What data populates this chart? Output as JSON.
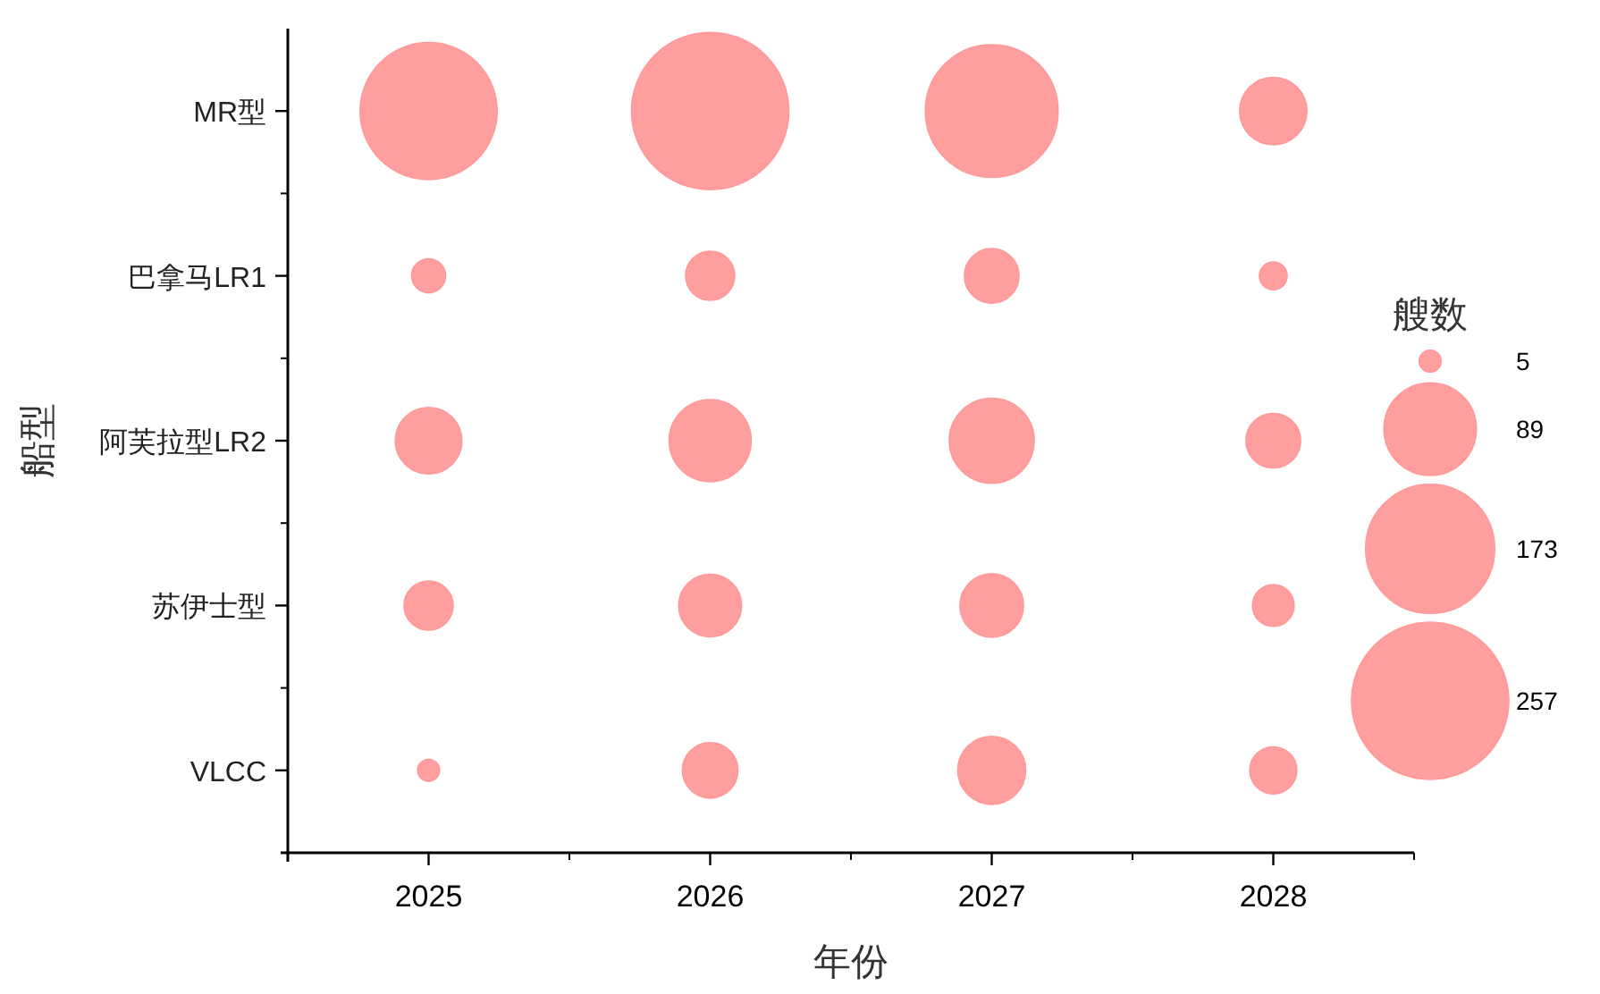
{
  "chart_data": {
    "type": "bubble",
    "orientation": "horizontal",
    "xlabel": "年份",
    "ylabel": "船型",
    "legend_title": "艘数",
    "xlim": [
      2024.5,
      2028.5
    ],
    "xticks": [
      2025,
      2026,
      2027,
      2028
    ],
    "categories": [
      "MR型",
      "巴拿马LR1",
      "阿芙拉型LR2",
      "苏伊士型",
      "VLCC"
    ],
    "size_legend": [
      5,
      89,
      173,
      257
    ],
    "series": [
      {
        "color": "#ff9999",
        "values": [
          2025,
          2025,
          2025,
          2025,
          2025
        ],
        "sizes": [
          195,
          12,
          46,
          25,
          5
        ]
      },
      {
        "color": "#ff9999",
        "values": [
          2026,
          2026,
          2026,
          2026,
          2026
        ],
        "sizes": [
          257,
          25,
          70,
          41,
          32
        ]
      },
      {
        "color": "#ff9999",
        "values": [
          2027,
          2027,
          2027,
          2027,
          2027
        ],
        "sizes": [
          183,
          31,
          75,
          42,
          48
        ]
      },
      {
        "color": "#ff9999",
        "values": [
          2028,
          2028,
          2028,
          2028,
          2028
        ],
        "sizes": [
          47,
          8,
          31,
          18,
          23
        ]
      }
    ]
  }
}
